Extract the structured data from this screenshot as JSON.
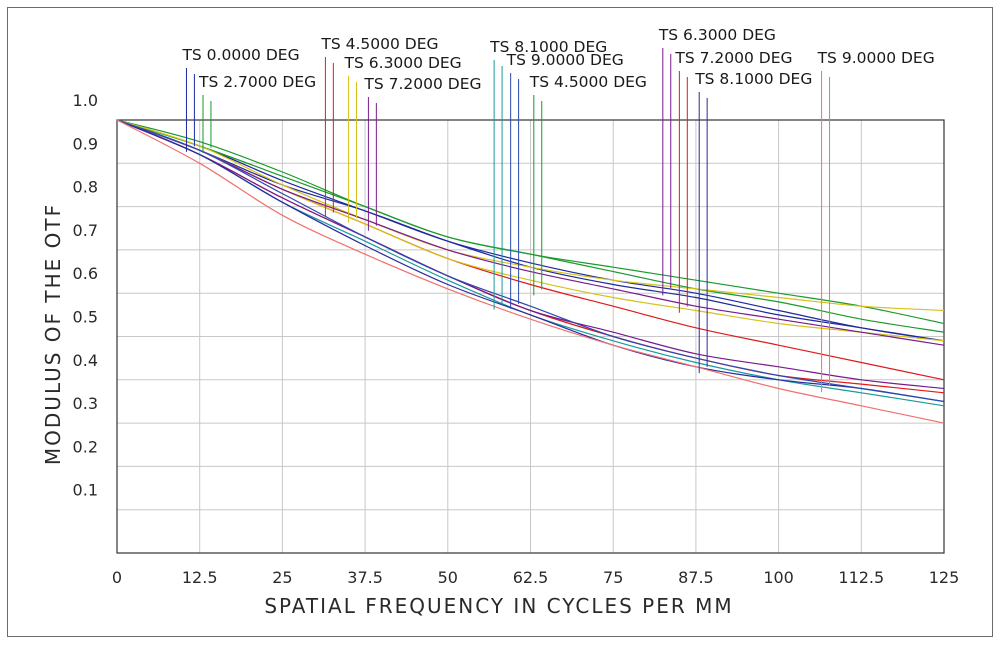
{
  "chart_data": {
    "type": "line",
    "title": "",
    "xlabel": "SPATIAL FREQUENCY IN CYCLES PER MM",
    "ylabel": "MODULUS OF THE OTF",
    "xlim": [
      0,
      125
    ],
    "ylim": [
      0,
      1.0
    ],
    "x_ticks": [
      "0",
      "12.5",
      "25",
      "37.5",
      "50",
      "62.5",
      "75",
      "87.5",
      "100",
      "112.5",
      "125"
    ],
    "y_ticks": [
      "0.1",
      "0.2",
      "0.3",
      "0.4",
      "0.5",
      "0.6",
      "0.7",
      "0.8",
      "0.9",
      "1.0"
    ],
    "grid": true,
    "x": [
      0,
      12.5,
      25,
      37.5,
      50,
      62.5,
      75,
      87.5,
      100,
      112.5,
      125
    ],
    "series": [
      {
        "name": "TS 0.0000 DEG",
        "color": "#1e2a9e",
        "values": [
          1.0,
          0.94,
          0.86,
          0.79,
          0.72,
          0.67,
          0.63,
          0.6,
          0.56,
          0.52,
          0.49
        ]
      },
      {
        "name": "TS 0.0000 DEG",
        "color": "#1e2a9e",
        "values": [
          1.0,
          0.93,
          0.85,
          0.79,
          0.72,
          0.66,
          0.62,
          0.59,
          0.55,
          0.52,
          0.49
        ]
      },
      {
        "name": "TS 2.7000 DEG",
        "color": "#1a9a2a",
        "values": [
          1.0,
          0.95,
          0.88,
          0.8,
          0.73,
          0.69,
          0.66,
          0.63,
          0.6,
          0.57,
          0.53
        ]
      },
      {
        "name": "TS 2.7000 DEG",
        "color": "#1a9a2a",
        "values": [
          1.0,
          0.94,
          0.87,
          0.8,
          0.73,
          0.69,
          0.65,
          0.61,
          0.58,
          0.54,
          0.51
        ]
      },
      {
        "name": "TS 4.5000 DEG",
        "color": "#e01a1a",
        "values": [
          1.0,
          0.93,
          0.84,
          0.76,
          0.68,
          0.62,
          0.57,
          0.52,
          0.48,
          0.44,
          0.4
        ]
      },
      {
        "name": "TS 4.5000 DEG",
        "color": "#e01a1a",
        "values": [
          1.0,
          0.92,
          0.82,
          0.73,
          0.64,
          0.56,
          0.5,
          0.45,
          0.41,
          0.39,
          0.37
        ]
      },
      {
        "name": "TS 6.3000 DEG",
        "color": "#d6c21a",
        "values": [
          1.0,
          0.94,
          0.85,
          0.77,
          0.7,
          0.66,
          0.63,
          0.61,
          0.59,
          0.57,
          0.56
        ]
      },
      {
        "name": "TS 6.3000 DEG",
        "color": "#d6c21a",
        "values": [
          1.0,
          0.93,
          0.84,
          0.76,
          0.68,
          0.63,
          0.59,
          0.56,
          0.53,
          0.51,
          0.49
        ]
      },
      {
        "name": "TS 7.2000 DEG",
        "color": "#7a1a8e",
        "values": [
          1.0,
          0.93,
          0.84,
          0.77,
          0.7,
          0.65,
          0.61,
          0.57,
          0.54,
          0.51,
          0.48
        ]
      },
      {
        "name": "TS 7.2000 DEG",
        "color": "#7a1a8e",
        "values": [
          1.0,
          0.92,
          0.82,
          0.73,
          0.64,
          0.56,
          0.51,
          0.46,
          0.43,
          0.4,
          0.38
        ]
      },
      {
        "name": "TS 8.1000 DEG",
        "color": "#1a9a9a",
        "values": [
          1.0,
          0.92,
          0.81,
          0.72,
          0.63,
          0.55,
          0.49,
          0.44,
          0.4,
          0.37,
          0.34
        ]
      },
      {
        "name": "TS 8.1000 DEG",
        "color": "#2a2a9e",
        "values": [
          1.0,
          0.92,
          0.81,
          0.71,
          0.62,
          0.55,
          0.48,
          0.43,
          0.4,
          0.38,
          0.35
        ]
      },
      {
        "name": "TS 9.0000 DEG",
        "color": "#2a4ab0",
        "values": [
          1.0,
          0.93,
          0.83,
          0.73,
          0.64,
          0.57,
          0.5,
          0.45,
          0.41,
          0.38,
          0.35
        ]
      },
      {
        "name": "TS 9.0000 DEG",
        "color": "#f07070",
        "values": [
          1.0,
          0.9,
          0.78,
          0.69,
          0.61,
          0.54,
          0.48,
          0.43,
          0.38,
          0.34,
          0.3
        ]
      }
    ],
    "field_labels": [
      {
        "text": "TS 0.0000 DEG",
        "color": "#1e2a9e",
        "x": 10.5
      },
      {
        "text": "TS 2.7000 DEG",
        "color": "#1a9a2a",
        "x": 13.0
      },
      {
        "text": "TS 4.5000 DEG",
        "color": "#e01a1a",
        "x": 31.5
      },
      {
        "text": "TS 6.3000 DEG",
        "color": "#d6c21a",
        "x": 35.0
      },
      {
        "text": "TS 7.2000 DEG",
        "color": "#7a1a8e",
        "x": 38.0
      },
      {
        "text": "TS 8.1000 DEG",
        "color": "#1a9a9a",
        "x": 57.0
      },
      {
        "text": "TS 9.0000 DEG",
        "color": "#2a4ab0",
        "x": 59.5
      },
      {
        "text": "TS 4.5000 DEG",
        "color": "#1a9a2a",
        "x": 63.0
      },
      {
        "text": "TS 6.3000 DEG",
        "color": "#7a1a8e",
        "x": 82.5
      },
      {
        "text": "TS 7.2000 DEG",
        "color": "#e01a1a",
        "x": 85.0
      },
      {
        "text": "TS 8.1000 DEG",
        "color": "#2a2a9e",
        "x": 88.0
      },
      {
        "text": "TS 9.0000 DEG",
        "color": "#f07070",
        "x": 106.5
      }
    ]
  }
}
